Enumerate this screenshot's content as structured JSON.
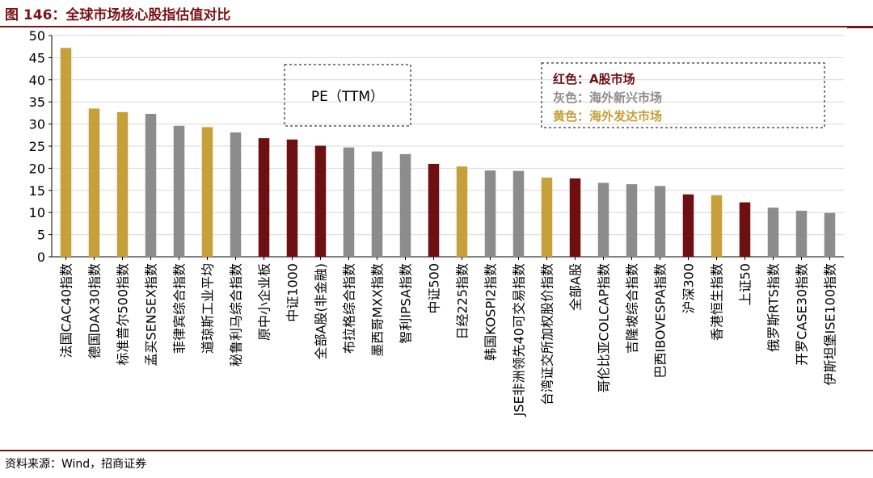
{
  "header": {
    "title": "图 146：全球市场核心股指估值对比"
  },
  "footer": {
    "source": "资料来源：Wind，招商证券"
  },
  "colors": {
    "red": "#6e0f12",
    "gray": "#8c8c8c",
    "yellow": "#c6a03a",
    "brand": "#7b1416"
  },
  "chart_data": {
    "type": "bar",
    "title": "PE（TTM）",
    "ylim": [
      0,
      50
    ],
    "yticks": [
      "0",
      "5",
      "10",
      "15",
      "20",
      "25",
      "30",
      "35",
      "40",
      "45",
      "50"
    ],
    "legend": [
      {
        "label": "红色：A股市场",
        "group": "red"
      },
      {
        "label": "灰色：海外新兴市场",
        "group": "gray"
      },
      {
        "label": "黄色：海外发达市场",
        "group": "yellow"
      }
    ],
    "categories": [
      "法国CAC40指数",
      "德国DAX30指数",
      "标准普尔500指数",
      "孟买SENSEX指数",
      "菲律宾综合指数",
      "道琼斯工业平均",
      "秘鲁利马综合指数",
      "原中小企业板",
      "中证1000",
      "全部A股(非金融)",
      "布拉格综合指数",
      "墨西哥MXX指数",
      "智利IPSA指数",
      "中证500",
      "日经225指数",
      "韩国KOSPI2指数",
      "JSE非洲领先40可交易指数",
      "台湾证交所加权股价指数",
      "全部A股",
      "哥伦比亚COLCAP指数",
      "吉隆坡综合指数",
      "巴西IBOVESPA指数",
      "沪深300",
      "香港恒生指数",
      "上证50",
      "俄罗斯RTS指数",
      "开罗CASE30指数",
      "伊斯坦堡ISE100指数"
    ],
    "values": [
      47.2,
      33.5,
      32.7,
      32.3,
      29.6,
      29.3,
      28.1,
      26.8,
      26.5,
      25.1,
      24.7,
      23.8,
      23.2,
      21.0,
      20.4,
      19.5,
      19.4,
      17.9,
      17.7,
      16.7,
      16.4,
      16.0,
      14.1,
      13.9,
      12.3,
      11.1,
      10.4,
      9.9
    ],
    "groups": [
      "yellow",
      "yellow",
      "yellow",
      "gray",
      "gray",
      "yellow",
      "gray",
      "red",
      "red",
      "red",
      "gray",
      "gray",
      "gray",
      "red",
      "yellow",
      "gray",
      "gray",
      "yellow",
      "red",
      "gray",
      "gray",
      "gray",
      "red",
      "yellow",
      "red",
      "gray",
      "gray",
      "gray"
    ]
  }
}
